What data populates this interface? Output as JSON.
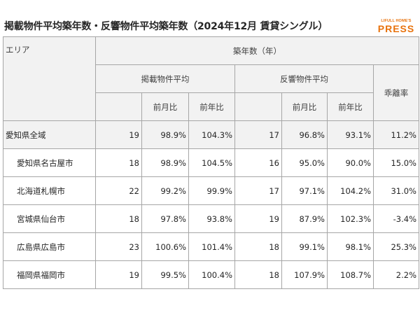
{
  "title": "掲載物件平均築年数・反響物件平均築年数（2024年12月 賃貸シングル）",
  "logo": {
    "top": "LIFULL HOME'S",
    "main": "PRESS"
  },
  "table": {
    "headers": {
      "area": "エリア",
      "age": "築年数（年）",
      "listed_avg": "掲載物件平均",
      "response_avg": "反響物件平均",
      "deviation": "乖離率",
      "mom": "前月比",
      "yoy": "前年比"
    },
    "rows": [
      {
        "area": "愛知県全域",
        "listed": "19",
        "listed_mom": "98.9%",
        "listed_yoy": "104.3%",
        "response": "17",
        "response_mom": "96.8%",
        "response_yoy": "93.1%",
        "deviation": "11.2%"
      },
      {
        "area": "愛知県名古屋市",
        "listed": "18",
        "listed_mom": "98.9%",
        "listed_yoy": "104.5%",
        "response": "16",
        "response_mom": "95.0%",
        "response_yoy": "90.0%",
        "deviation": "15.0%"
      },
      {
        "area": "北海道札幌市",
        "listed": "22",
        "listed_mom": "99.2%",
        "listed_yoy": "99.9%",
        "response": "17",
        "response_mom": "97.1%",
        "response_yoy": "104.2%",
        "deviation": "31.0%"
      },
      {
        "area": "宮城県仙台市",
        "listed": "18",
        "listed_mom": "97.8%",
        "listed_yoy": "93.8%",
        "response": "19",
        "response_mom": "87.9%",
        "response_yoy": "102.3%",
        "deviation": "-3.4%"
      },
      {
        "area": "広島県広島市",
        "listed": "23",
        "listed_mom": "100.6%",
        "listed_yoy": "101.4%",
        "response": "18",
        "response_mom": "99.1%",
        "response_yoy": "98.1%",
        "deviation": "25.3%"
      },
      {
        "area": "福岡県福岡市",
        "listed": "19",
        "listed_mom": "99.5%",
        "listed_yoy": "100.4%",
        "response": "18",
        "response_mom": "107.9%",
        "response_yoy": "108.7%",
        "deviation": "2.2%"
      }
    ]
  }
}
